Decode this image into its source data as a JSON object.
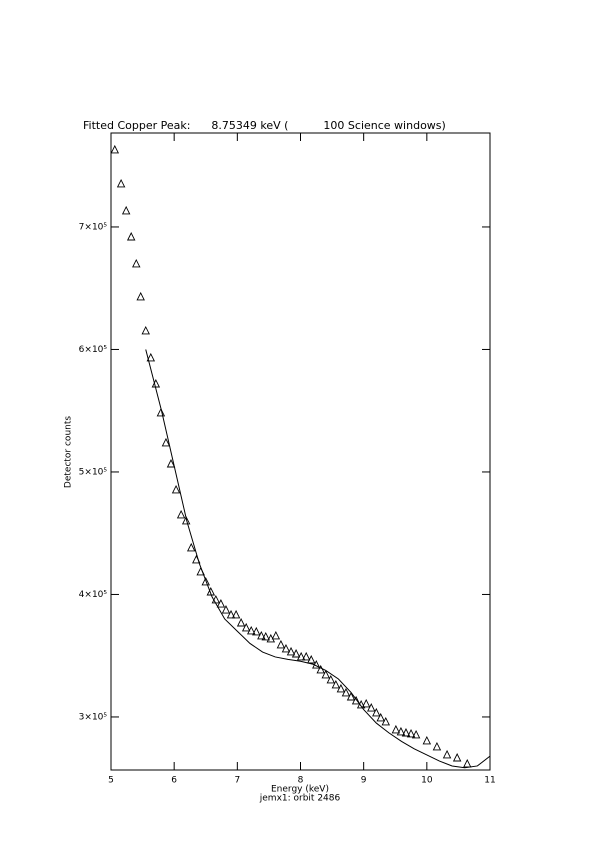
{
  "chart_data": {
    "type": "scatter",
    "title": "Fitted Copper Peak:      8.75349 keV (          100 Science windows)",
    "x_label": "Energy (keV)",
    "subtitle": "jemx1: orbit 2486",
    "y_label": "Detector counts",
    "xlim": [
      5,
      11
    ],
    "xticks": [
      5,
      6,
      7,
      8,
      9,
      10,
      11
    ],
    "ylim": [
      256700,
      776700
    ],
    "yticks": [
      {
        "value": 300000,
        "label": "3×10⁵"
      },
      {
        "value": 400000,
        "label": "4×10⁵"
      },
      {
        "value": 500000,
        "label": "5×10⁵"
      },
      {
        "value": 600000,
        "label": "6×10⁵"
      },
      {
        "value": 700000,
        "label": "7×10⁵"
      }
    ],
    "series": [
      {
        "marker": "triangle",
        "color": "#000000",
        "x": [
          5.06,
          5.16,
          5.24,
          5.32,
          5.4,
          5.47,
          5.55,
          5.63,
          5.71,
          5.79,
          5.87,
          5.95,
          6.03,
          6.11,
          6.19,
          6.27,
          6.35,
          6.42,
          6.5,
          6.58,
          6.66,
          6.74,
          6.82,
          6.9,
          6.98,
          7.06,
          7.14,
          7.22,
          7.3,
          7.38,
          7.45,
          7.53,
          7.61,
          7.69,
          7.77,
          7.85,
          7.93,
          8.01,
          8.09,
          8.17,
          8.25,
          8.32,
          8.4,
          8.48,
          8.56,
          8.64,
          8.72,
          8.8,
          8.88,
          8.96,
          9.04,
          9.12,
          9.2,
          9.27,
          9.35,
          9.51,
          9.59,
          9.67,
          9.75,
          9.83,
          10.0,
          10.16,
          10.32,
          10.48,
          10.64
        ],
        "values": [
          762900,
          735100,
          713100,
          691800,
          669800,
          642900,
          615100,
          593100,
          571800,
          548200,
          523700,
          506500,
          485300,
          464900,
          460000,
          438000,
          428200,
          418400,
          410200,
          402000,
          395500,
          392200,
          387300,
          383300,
          383300,
          376700,
          372700,
          370200,
          369400,
          366100,
          365300,
          363700,
          366100,
          358800,
          355500,
          353100,
          351400,
          349000,
          349000,
          346500,
          342400,
          338400,
          334300,
          330200,
          326100,
          322900,
          319600,
          316300,
          313100,
          309800,
          310600,
          307300,
          303300,
          299200,
          295900,
          289400,
          287800,
          286900,
          286100,
          285300,
          280400,
          275500,
          269000,
          266500,
          261600
        ]
      },
      {
        "marker": "line",
        "color": "#000000",
        "x": [
          5.55,
          5.8,
          6.0,
          6.2,
          6.4,
          6.6,
          6.8,
          7.0,
          7.2,
          7.4,
          7.6,
          7.8,
          8.0,
          8.2,
          8.4,
          8.6,
          8.8,
          9.0,
          9.2,
          9.4,
          9.6,
          9.8,
          10.0,
          10.2,
          10.4,
          10.6,
          10.8,
          11.0
        ],
        "values": [
          600000,
          550000,
          505000,
          460000,
          425000,
          398000,
          380000,
          370000,
          360000,
          353000,
          349000,
          347000,
          345500,
          343000,
          338000,
          331000,
          320000,
          306000,
          295000,
          287000,
          280000,
          274000,
          269000,
          264000,
          260000,
          258500,
          260000,
          268000
        ]
      }
    ]
  }
}
